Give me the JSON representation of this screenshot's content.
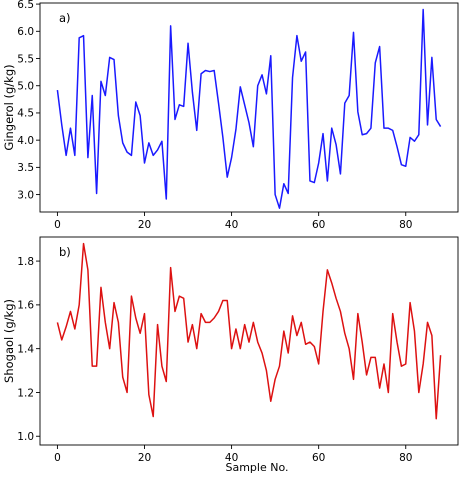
{
  "figure": {
    "xlabel": "Sample No."
  },
  "chart_data": [
    {
      "type": "line",
      "panel_label": "a)",
      "xlabel": "",
      "ylabel": "Gingerol (g/kg)",
      "xlim": [
        -4,
        92
      ],
      "ylim": [
        2.68,
        6.52
      ],
      "xticks": [
        "0",
        "20",
        "40",
        "60",
        "80"
      ],
      "xtick_values": [
        0,
        20,
        40,
        60,
        80
      ],
      "yticks": [
        "3.0",
        "3.5",
        "4.0",
        "4.5",
        "5.0",
        "5.5",
        "6.0",
        "6.5"
      ],
      "ytick_values": [
        3.0,
        3.5,
        4.0,
        4.5,
        5.0,
        5.5,
        6.0,
        6.5
      ],
      "grid": false,
      "color": "#1a1aff",
      "x": [
        0,
        1,
        2,
        3,
        4,
        5,
        6,
        7,
        8,
        9,
        10,
        11,
        12,
        13,
        14,
        15,
        16,
        17,
        18,
        19,
        20,
        21,
        22,
        23,
        24,
        25,
        26,
        27,
        28,
        29,
        30,
        31,
        32,
        33,
        34,
        35,
        36,
        37,
        38,
        39,
        40,
        41,
        42,
        43,
        44,
        45,
        46,
        47,
        48,
        49,
        50,
        51,
        52,
        53,
        54,
        55,
        56,
        57,
        58,
        59,
        60,
        61,
        62,
        63,
        64,
        65,
        66,
        67,
        68,
        69,
        70,
        71,
        72,
        73,
        74,
        75,
        76,
        77,
        78,
        79,
        80,
        81,
        82,
        83,
        84,
        85,
        86,
        87,
        88
      ],
      "values": [
        4.92,
        4.28,
        3.72,
        4.22,
        3.72,
        5.88,
        5.92,
        3.68,
        4.82,
        3.02,
        5.08,
        4.82,
        5.52,
        5.48,
        4.45,
        3.95,
        3.78,
        3.72,
        4.7,
        4.45,
        3.58,
        3.95,
        3.72,
        3.82,
        3.98,
        2.92,
        6.1,
        4.38,
        4.65,
        4.62,
        5.78,
        4.88,
        4.18,
        5.22,
        5.28,
        5.26,
        5.28,
        4.68,
        4.05,
        3.32,
        3.68,
        4.2,
        4.98,
        4.65,
        4.32,
        3.88,
        5.0,
        5.2,
        4.85,
        5.55,
        3.0,
        2.75,
        3.2,
        3.02,
        5.15,
        5.92,
        5.45,
        5.62,
        3.25,
        3.22,
        3.58,
        4.12,
        3.25,
        4.22,
        3.92,
        3.38,
        4.68,
        4.82,
        5.98,
        4.52,
        4.1,
        4.12,
        4.22,
        5.42,
        5.72,
        4.22,
        4.22,
        4.18,
        3.88,
        3.55,
        3.52,
        4.05,
        3.98,
        4.1,
        6.4,
        4.28,
        5.52,
        4.38,
        4.25
      ]
    },
    {
      "type": "line",
      "panel_label": "b)",
      "xlabel": "Sample No.",
      "ylabel": "Shogaol (g/kg)",
      "xlim": [
        -4,
        92
      ],
      "ylim": [
        0.96,
        1.91
      ],
      "xticks": [
        "0",
        "20",
        "40",
        "60",
        "80"
      ],
      "xtick_values": [
        0,
        20,
        40,
        60,
        80
      ],
      "yticks": [
        "1.0",
        "1.2",
        "1.4",
        "1.6",
        "1.8"
      ],
      "ytick_values": [
        1.0,
        1.2,
        1.4,
        1.6,
        1.8
      ],
      "grid": false,
      "color": "#dd1111",
      "x": [
        0,
        1,
        2,
        3,
        4,
        5,
        6,
        7,
        8,
        9,
        10,
        11,
        12,
        13,
        14,
        15,
        16,
        17,
        18,
        19,
        20,
        21,
        22,
        23,
        24,
        25,
        26,
        27,
        28,
        29,
        30,
        31,
        32,
        33,
        34,
        35,
        36,
        37,
        38,
        39,
        40,
        41,
        42,
        43,
        44,
        45,
        46,
        47,
        48,
        49,
        50,
        51,
        52,
        53,
        54,
        55,
        56,
        57,
        58,
        59,
        60,
        61,
        62,
        63,
        64,
        65,
        66,
        67,
        68,
        69,
        70,
        71,
        72,
        73,
        74,
        75,
        76,
        77,
        78,
        79,
        80,
        81,
        82,
        83,
        84,
        85,
        86,
        87,
        88
      ],
      "values": [
        1.52,
        1.44,
        1.5,
        1.57,
        1.49,
        1.6,
        1.88,
        1.76,
        1.32,
        1.32,
        1.68,
        1.52,
        1.4,
        1.61,
        1.52,
        1.27,
        1.2,
        1.64,
        1.54,
        1.47,
        1.56,
        1.19,
        1.09,
        1.51,
        1.32,
        1.25,
        1.77,
        1.57,
        1.64,
        1.63,
        1.43,
        1.51,
        1.4,
        1.56,
        1.52,
        1.52,
        1.54,
        1.57,
        1.62,
        1.62,
        1.4,
        1.49,
        1.4,
        1.51,
        1.43,
        1.52,
        1.43,
        1.38,
        1.3,
        1.16,
        1.26,
        1.32,
        1.48,
        1.38,
        1.55,
        1.46,
        1.52,
        1.42,
        1.43,
        1.41,
        1.33,
        1.57,
        1.76,
        1.7,
        1.63,
        1.57,
        1.47,
        1.4,
        1.26,
        1.56,
        1.43,
        1.28,
        1.36,
        1.36,
        1.22,
        1.33,
        1.2,
        1.56,
        1.43,
        1.32,
        1.33,
        1.61,
        1.48,
        1.2,
        1.33,
        1.52,
        1.46,
        1.08,
        1.37
      ]
    }
  ]
}
